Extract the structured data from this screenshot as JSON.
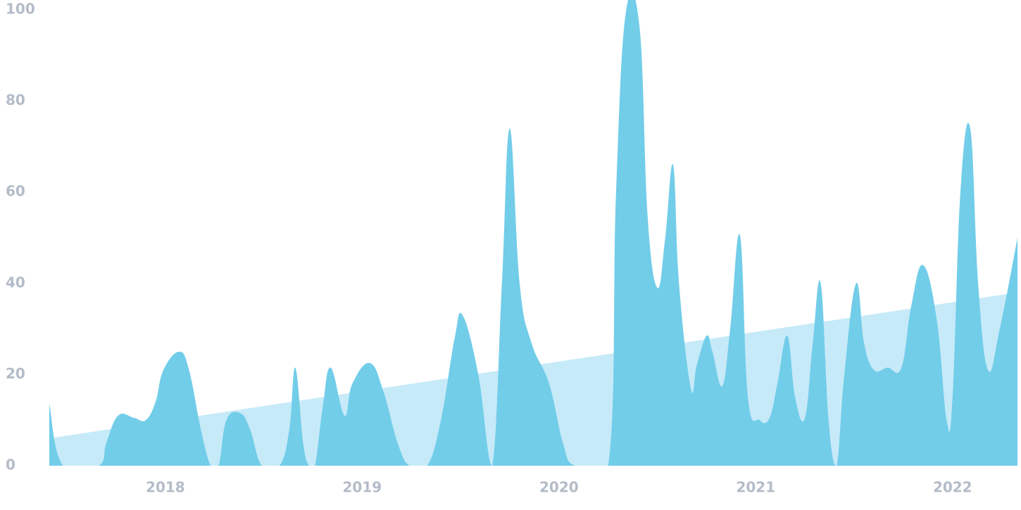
{
  "chart_data": {
    "type": "area",
    "xlim": [
      2017.41,
      2022.33
    ],
    "ylim": [
      0,
      100
    ],
    "xticks": [
      2018,
      2019,
      2020,
      2021,
      2022
    ],
    "yticks": [
      0,
      20,
      40,
      60,
      80,
      100
    ],
    "series": [
      {
        "color": "#c6eaf8",
        "x": [
          2017.41,
          2022.33
        ],
        "values": [
          6,
          38
        ]
      },
      {
        "color": "#72cde9",
        "x": [
          2017.41,
          2017.48,
          2017.66,
          2017.7,
          2017.76,
          2017.84,
          2017.9,
          2017.95,
          2017.99,
          2018.07,
          2018.12,
          2018.18,
          2018.23,
          2018.27,
          2018.31,
          2018.38,
          2018.43,
          2018.49,
          2018.58,
          2018.63,
          2018.66,
          2018.7,
          2018.73,
          2018.76,
          2018.8,
          2018.84,
          2018.91,
          2018.95,
          2019.04,
          2019.11,
          2019.18,
          2019.24,
          2019.33,
          2019.4,
          2019.47,
          2019.51,
          2019.59,
          2019.66,
          2019.71,
          2019.75,
          2019.8,
          2019.86,
          2019.95,
          2020.02,
          2020.08,
          2020.25,
          2020.29,
          2020.34,
          2020.41,
          2020.45,
          2020.5,
          2020.54,
          2020.58,
          2020.61,
          2020.67,
          2020.7,
          2020.75,
          2020.78,
          2020.83,
          2020.87,
          2020.92,
          2020.96,
          2021.02,
          2021.07,
          2021.11,
          2021.16,
          2021.2,
          2021.25,
          2021.29,
          2021.33,
          2021.37,
          2021.41,
          2021.45,
          2021.51,
          2021.55,
          2021.6,
          2021.67,
          2021.74,
          2021.79,
          2021.85,
          2021.92,
          2021.97,
          2022.0,
          2022.04,
          2022.09,
          2022.13,
          2022.18,
          2022.24,
          2022.33
        ],
        "values": [
          13.5,
          0,
          0,
          5,
          11,
          10.5,
          10,
          14,
          21,
          25,
          21,
          8,
          0,
          0,
          10,
          11.5,
          8,
          0,
          0,
          8,
          21.5,
          5,
          0,
          0,
          13,
          21.5,
          11,
          18,
          22.5,
          16,
          5,
          0,
          0,
          10,
          28,
          33,
          20,
          0,
          40,
          74,
          40,
          27,
          18,
          5,
          0,
          0,
          60,
          99.5,
          96,
          55,
          39,
          50,
          66,
          40,
          17,
          22,
          28.5,
          25,
          17.5,
          30,
          50.5,
          15,
          10,
          10.5,
          18,
          28.5,
          15,
          10.5,
          27,
          40,
          10,
          0,
          20,
          40,
          27,
          21,
          21.5,
          21.5,
          35,
          44,
          32,
          10,
          15,
          60,
          74,
          40,
          21,
          30,
          50
        ]
      }
    ]
  }
}
